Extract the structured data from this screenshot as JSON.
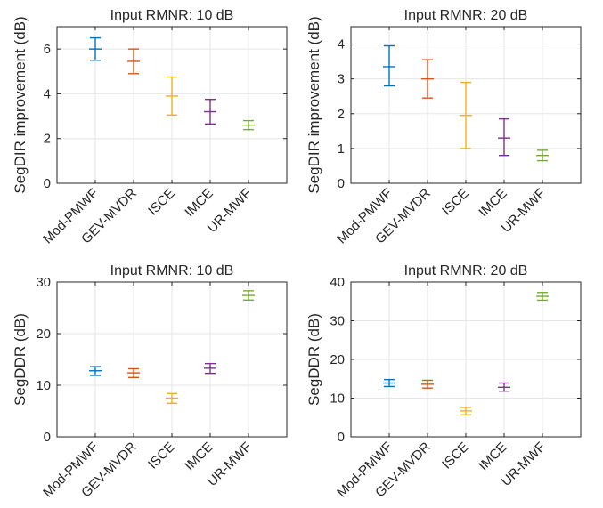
{
  "chart_data": [
    {
      "type": "errorbar",
      "title": "Input RMNR: 10 dB",
      "xlabel": "",
      "ylabel": "SegDIR improvement (dB)",
      "categories": [
        "Mod-PMWF",
        "GEV-MVDR",
        "ISCE",
        "IMCE",
        "UR-MWF"
      ],
      "series": [
        {
          "mean": [
            6.0,
            5.45,
            3.9,
            3.2,
            2.6
          ],
          "lower": [
            5.5,
            4.9,
            3.05,
            2.65,
            2.4
          ],
          "upper": [
            6.5,
            6.0,
            4.75,
            3.75,
            2.8
          ]
        }
      ],
      "ylim": [
        0,
        7
      ],
      "yticks": [
        "0",
        "2",
        "4",
        "6"
      ],
      "ytick_values": [
        0,
        2,
        4,
        6
      ],
      "grid": true
    },
    {
      "type": "errorbar",
      "title": "Input RMNR: 20 dB",
      "xlabel": "",
      "ylabel": "SegDIR improvement (dB)",
      "categories": [
        "Mod-PMWF",
        "GEV-MVDR",
        "ISCE",
        "IMCE",
        "UR-MWF"
      ],
      "series": [
        {
          "mean": [
            3.35,
            3.0,
            1.95,
            1.3,
            0.8
          ],
          "lower": [
            2.8,
            2.45,
            1.0,
            0.8,
            0.65
          ],
          "upper": [
            3.95,
            3.55,
            2.9,
            1.85,
            0.95
          ]
        }
      ],
      "ylim": [
        0,
        4.5
      ],
      "yticks": [
        "0",
        "1",
        "2",
        "3",
        "4"
      ],
      "ytick_values": [
        0,
        1,
        2,
        3,
        4
      ],
      "grid": true
    },
    {
      "type": "errorbar",
      "title": "Input RMNR: 10 dB",
      "xlabel": "",
      "ylabel": "SegDDR (dB)",
      "categories": [
        "Mod-PMWF",
        "GEV-MVDR",
        "ISCE",
        "IMCE",
        "UR-MWF"
      ],
      "series": [
        {
          "mean": [
            12.8,
            12.4,
            7.5,
            13.3,
            27.4
          ],
          "lower": [
            11.9,
            11.5,
            6.5,
            12.3,
            26.5
          ],
          "upper": [
            13.6,
            13.2,
            8.4,
            14.2,
            28.3
          ]
        }
      ],
      "ylim": [
        0,
        30
      ],
      "yticks": [
        "0",
        "10",
        "20",
        "30"
      ],
      "ytick_values": [
        0,
        10,
        20,
        30
      ],
      "grid": true
    },
    {
      "type": "errorbar",
      "title": "Input RMNR: 20 dB",
      "xlabel": "",
      "ylabel": "SegDDR (dB)",
      "categories": [
        "Mod-PMWF",
        "GEV-MVDR",
        "ISCE",
        "IMCE",
        "UR-MWF"
      ],
      "series": [
        {
          "mean": [
            13.9,
            13.6,
            6.7,
            12.8,
            36.3
          ],
          "lower": [
            13.0,
            12.6,
            5.7,
            11.8,
            35.3
          ],
          "upper": [
            14.8,
            14.6,
            7.6,
            13.9,
            37.3
          ]
        }
      ],
      "ylim": [
        0,
        40
      ],
      "yticks": [
        "0",
        "10",
        "20",
        "30",
        "40"
      ],
      "ytick_values": [
        0,
        10,
        20,
        30,
        40
      ],
      "grid": true
    }
  ],
  "colors": [
    "#0072BD",
    "#D95319",
    "#EDB120",
    "#7E2F8E",
    "#77AC30"
  ],
  "style": {
    "axis_color": "#262626",
    "grid_color": "#e6e6e6"
  }
}
